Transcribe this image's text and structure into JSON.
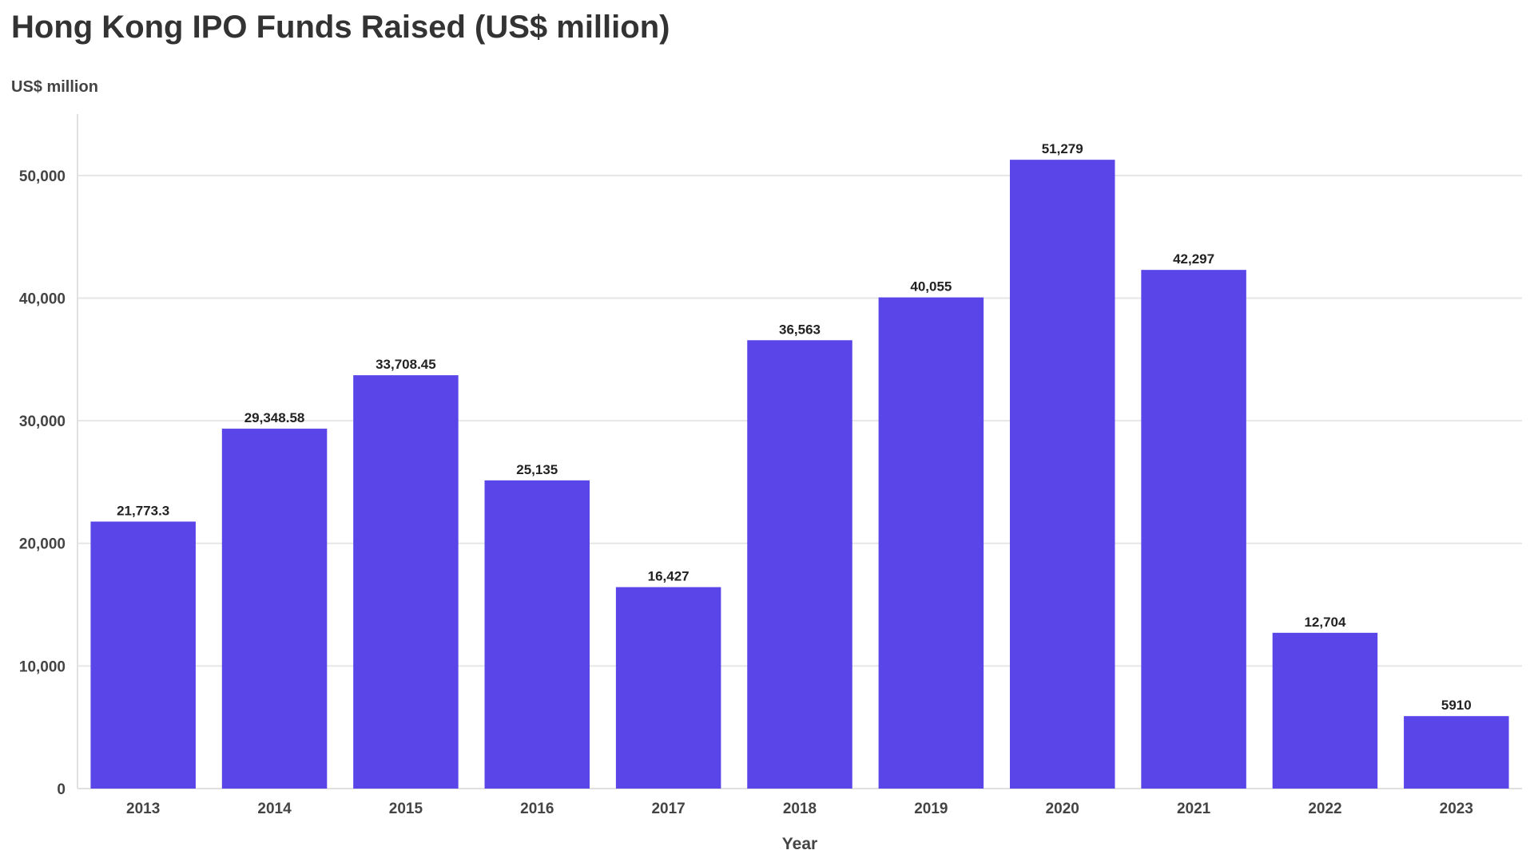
{
  "chart_data": {
    "type": "bar",
    "title": "Hong Kong IPO Funds Raised (US$ million)",
    "ylabel": "US$ million",
    "xlabel": "Year",
    "categories": [
      "2013",
      "2014",
      "2015",
      "2016",
      "2017",
      "2018",
      "2019",
      "2020",
      "2021",
      "2022",
      "2023"
    ],
    "values": [
      21773.3,
      29348.58,
      33708.45,
      25135,
      16427,
      36563,
      40055,
      51279,
      42297,
      12704,
      5910
    ],
    "data_labels": [
      "21,773.3",
      "29,348.58",
      "33,708.45",
      "25,135",
      "16,427",
      "36,563",
      "40,055",
      "51,279",
      "42,297",
      "12,704",
      "5910"
    ],
    "ylim": [
      0,
      55000
    ],
    "yticks": [
      0,
      10000,
      20000,
      30000,
      40000,
      50000
    ],
    "ytick_labels": [
      "0",
      "10,000",
      "20,000",
      "30,000",
      "40,000",
      "50,000"
    ],
    "grid": true,
    "bar_color": "#5a45e8",
    "gridline_color": "#e6e6e6"
  }
}
